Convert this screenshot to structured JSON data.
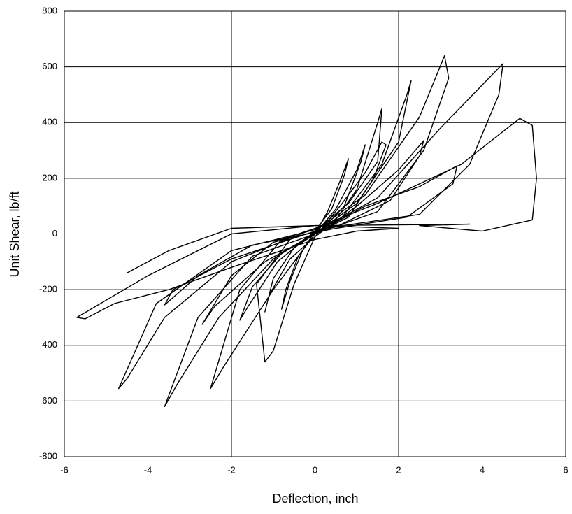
{
  "chart_data": {
    "type": "line",
    "x_label": "Deflection, inch",
    "y_label": "Unit Shear, lb/ft",
    "color": "#000000",
    "grid": true,
    "xlim": [
      -6,
      6
    ],
    "xticks": [
      -6,
      -4,
      -2,
      0,
      2,
      4,
      6
    ],
    "ylim": [
      -800,
      800
    ],
    "yticks": [
      -800,
      -600,
      -400,
      -200,
      0,
      200,
      400,
      600,
      800
    ],
    "x": [
      0,
      0.3,
      0.6,
      0.8,
      0.7,
      0.4,
      0,
      -0.3,
      -0.6,
      -0.8,
      -0.7,
      -0.4,
      0,
      0.5,
      1.0,
      1.2,
      1.1,
      0.7,
      0.2,
      -0.5,
      -1.0,
      -1.2,
      -1.1,
      -0.6,
      0,
      0.6,
      1.2,
      1.6,
      1.7,
      1.4,
      0.8,
      0,
      -0.8,
      -1.5,
      -1.8,
      -1.6,
      -0.9,
      0,
      0.8,
      1.5,
      1.6,
      1.5,
      1.0,
      0.4,
      -0.6,
      -1.4,
      -1.2,
      -1.0,
      -0.5,
      0,
      1.0,
      2.0,
      2.6,
      2.5,
      1.8,
      0.5,
      -1,
      -2.0,
      -2.7,
      -2.4,
      -1.2,
      0,
      1.0,
      2.0,
      2.3,
      2.2,
      1.6,
      0.6,
      -0.8,
      -1.8,
      -2.5,
      -2.2,
      -1.0,
      0,
      1.2,
      2.5,
      3.4,
      3.3,
      2.2,
      0.5,
      -1.5,
      -2.8,
      -3.6,
      -3.4,
      -2,
      0,
      1.2,
      2.5,
      3.1,
      3.2,
      2.6,
      1.5,
      0,
      -1.5,
      -2.8,
      -3.6,
      -3.3,
      -2.3,
      -1,
      0,
      1.5,
      3.0,
      4.5,
      4.4,
      3.7,
      2.5,
      0,
      -2,
      -3.8,
      -4.7,
      -4.5,
      -3.6,
      -2,
      0,
      1.5,
      3.5,
      4.9,
      5.2,
      5.3,
      5.2,
      4,
      2.5,
      3.7,
      0,
      -2,
      -4,
      -5.7,
      -5.5,
      -4.8,
      -3.5,
      -2,
      0,
      1,
      2,
      0,
      -2,
      -3.5,
      -4.5
    ],
    "values": [
      0,
      80,
      190,
      270,
      210,
      90,
      10,
      -60,
      -170,
      -270,
      -200,
      -80,
      0,
      90,
      230,
      320,
      260,
      100,
      20,
      -50,
      -160,
      -280,
      -220,
      -90,
      -10,
      100,
      220,
      330,
      320,
      200,
      60,
      0,
      -70,
      -190,
      -310,
      -260,
      -100,
      10,
      110,
      260,
      450,
      400,
      160,
      30,
      -20,
      -180,
      -460,
      -420,
      -180,
      -10,
      100,
      230,
      335,
      280,
      120,
      25,
      -30,
      -150,
      -325,
      -260,
      -100,
      0,
      110,
      330,
      550,
      500,
      250,
      50,
      -20,
      -200,
      -555,
      -480,
      -200,
      0,
      100,
      170,
      245,
      180,
      60,
      20,
      -40,
      -150,
      -255,
      -200,
      -90,
      10,
      140,
      420,
      640,
      560,
      300,
      80,
      0,
      -80,
      -300,
      -620,
      -540,
      -300,
      -90,
      5,
      130,
      380,
      612,
      500,
      250,
      70,
      15,
      -60,
      -250,
      -555,
      -520,
      -300,
      -100,
      20,
      110,
      250,
      415,
      390,
      200,
      50,
      10,
      30,
      35,
      30,
      0,
      -150,
      -300,
      -305,
      -250,
      -200,
      -120,
      -20,
      10,
      20,
      30,
      20,
      -60,
      -140
    ]
  }
}
